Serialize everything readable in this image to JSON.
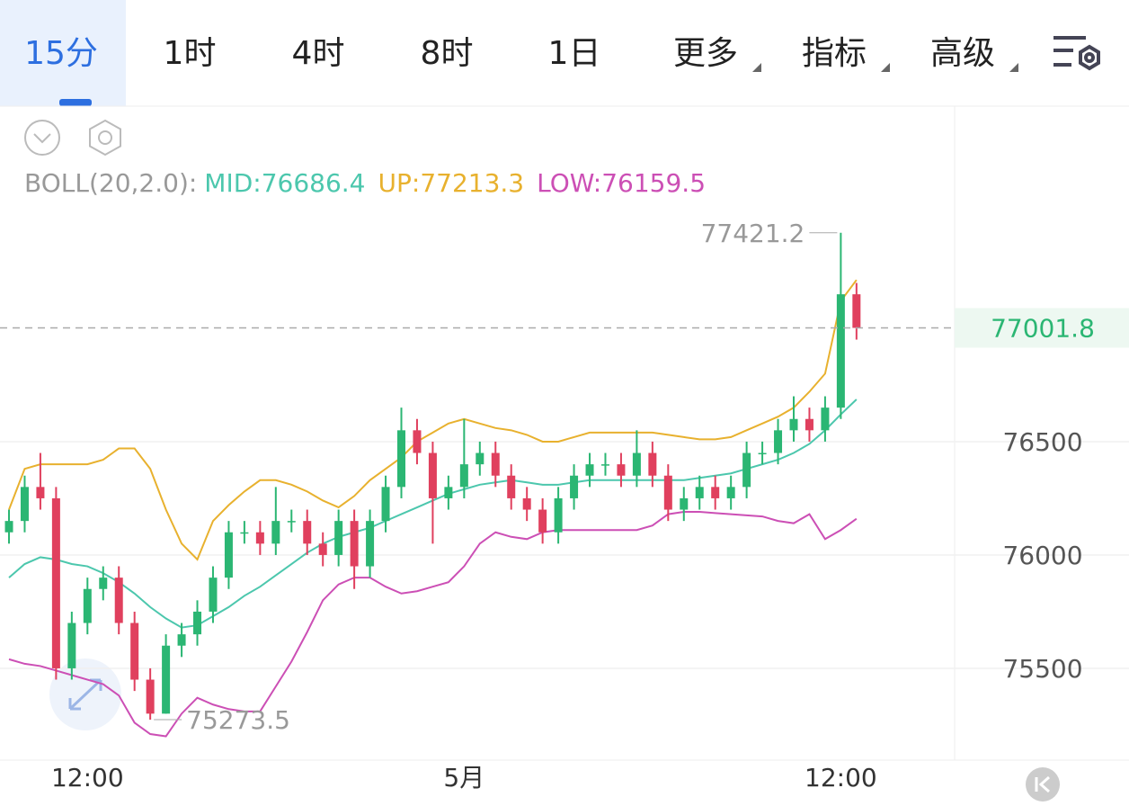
{
  "tabs": [
    {
      "label": "15分"
    },
    {
      "label": "1时"
    },
    {
      "label": "4时"
    },
    {
      "label": "8时"
    },
    {
      "label": "1日"
    },
    {
      "label": "更多"
    },
    {
      "label": "指标"
    },
    {
      "label": "高级"
    }
  ],
  "chart_data": {
    "type": "candlestick",
    "indicator": {
      "label": "BOLL(20,2.0):",
      "items": [
        "MID:76686.4",
        "UP:77213.3",
        "LOW:76159.5"
      ]
    },
    "categories": [
      null,
      null,
      null,
      null,
      null,
      "12:00",
      null,
      null,
      null,
      null,
      null,
      null,
      null,
      null,
      null,
      null,
      null,
      null,
      null,
      null,
      null,
      null,
      null,
      null,
      null,
      null,
      null,
      null,
      null,
      "5月",
      null,
      null,
      null,
      null,
      null,
      null,
      null,
      null,
      null,
      null,
      null,
      null,
      null,
      null,
      null,
      null,
      null,
      null,
      null,
      null,
      null,
      null,
      null,
      "12:00",
      null
    ],
    "open": [
      76100,
      76150,
      76300,
      76250,
      75500,
      75700,
      75850,
      75900,
      75700,
      75450,
      75300,
      75600,
      75650,
      75750,
      75900,
      76100,
      76100,
      76050,
      76150,
      76150,
      76050,
      76000,
      76150,
      75950,
      76150,
      76300,
      76550,
      76450,
      76250,
      76300,
      76400,
      76450,
      76350,
      76250,
      76200,
      76100,
      76250,
      76350,
      76400,
      76400,
      76350,
      76450,
      76350,
      76200,
      76250,
      76300,
      76250,
      76300,
      76450,
      76450,
      76550,
      76600,
      76550,
      76650,
      77150
    ],
    "high": [
      76200,
      76350,
      76450,
      76300,
      75750,
      75900,
      75950,
      75950,
      75750,
      75500,
      75650,
      75700,
      75800,
      75950,
      76150,
      76150,
      76150,
      76300,
      76200,
      76200,
      76100,
      76200,
      76200,
      76200,
      76350,
      76650,
      76600,
      76500,
      76350,
      76600,
      76500,
      76500,
      76400,
      76300,
      76250,
      76300,
      76400,
      76450,
      76450,
      76450,
      76550,
      76500,
      76400,
      76300,
      76350,
      76350,
      76350,
      76500,
      76500,
      76600,
      76700,
      76650,
      76700,
      77421.2,
      77200
    ],
    "low": [
      76050,
      76100,
      76200,
      75450,
      75450,
      75650,
      75800,
      75650,
      75400,
      75273.5,
      75300,
      75550,
      75600,
      75700,
      75850,
      76050,
      76000,
      76000,
      76100,
      76000,
      75950,
      75950,
      75850,
      75900,
      76100,
      76250,
      76400,
      76050,
      76200,
      76250,
      76350,
      76300,
      76200,
      76150,
      76050,
      76050,
      76200,
      76300,
      76350,
      76300,
      76300,
      76300,
      76150,
      76150,
      76200,
      76200,
      76200,
      76250,
      76400,
      76400,
      76500,
      76500,
      76500,
      76600,
      76950
    ],
    "close": [
      76150,
      76300,
      76250,
      75500,
      75700,
      75850,
      75900,
      75700,
      75450,
      75300,
      75600,
      75650,
      75750,
      75900,
      76100,
      76100,
      76050,
      76150,
      76150,
      76050,
      76000,
      76150,
      75950,
      76150,
      76300,
      76550,
      76450,
      76250,
      76300,
      76400,
      76450,
      76350,
      76250,
      76200,
      76100,
      76250,
      76350,
      76400,
      76400,
      76350,
      76450,
      76350,
      76200,
      76250,
      76300,
      76250,
      76300,
      76450,
      76450,
      76550,
      76600,
      76550,
      76650,
      77150,
      77001.8
    ],
    "up_color": "#2bb673",
    "down_color": "#e0405e",
    "bands": [
      {
        "color": "#4cc7ad",
        "values": [
          75900,
          75960,
          75990,
          75980,
          75960,
          75950,
          75920,
          75880,
          75830,
          75770,
          75720,
          75680,
          75690,
          75730,
          75770,
          75820,
          75860,
          75910,
          75960,
          76010,
          76050,
          76080,
          76100,
          76120,
          76150,
          76180,
          76210,
          76240,
          76270,
          76290,
          76310,
          76320,
          76330,
          76320,
          76310,
          76310,
          76320,
          76330,
          76330,
          76330,
          76330,
          76330,
          76330,
          76330,
          76340,
          76350,
          76360,
          76380,
          76400,
          76420,
          76450,
          76490,
          76550,
          76620,
          76686.4
        ]
      },
      {
        "color": "#e8b12e",
        "values": [
          76200,
          76380,
          76400,
          76400,
          76400,
          76400,
          76420,
          76470,
          76470,
          76380,
          76200,
          76050,
          75980,
          76150,
          76220,
          76280,
          76330,
          76330,
          76310,
          76280,
          76240,
          76210,
          76260,
          76330,
          76380,
          76430,
          76500,
          76540,
          76580,
          76600,
          76580,
          76560,
          76550,
          76530,
          76500,
          76500,
          76520,
          76540,
          76540,
          76540,
          76540,
          76540,
          76530,
          76520,
          76510,
          76510,
          76520,
          76550,
          76580,
          76610,
          76650,
          76720,
          76800,
          77120,
          77213.3
        ]
      },
      {
        "color": "#cc4fb5",
        "values": [
          75540,
          75520,
          75510,
          75490,
          75470,
          75450,
          75430,
          75380,
          75260,
          75210,
          75200,
          75300,
          75370,
          75340,
          75320,
          75310,
          75310,
          75420,
          75530,
          75660,
          75800,
          75870,
          75900,
          75900,
          75860,
          75830,
          75840,
          75860,
          75880,
          75950,
          76050,
          76100,
          76080,
          76070,
          76100,
          76110,
          76110,
          76110,
          76110,
          76110,
          76110,
          76130,
          76180,
          76190,
          76190,
          76185,
          76180,
          76175,
          76170,
          76150,
          76140,
          76180,
          76070,
          76110,
          76159.5
        ]
      }
    ],
    "ylim": [
      75095,
      77972
    ],
    "yticks": [
      75500,
      76000,
      76500
    ],
    "grid": true
  }
}
